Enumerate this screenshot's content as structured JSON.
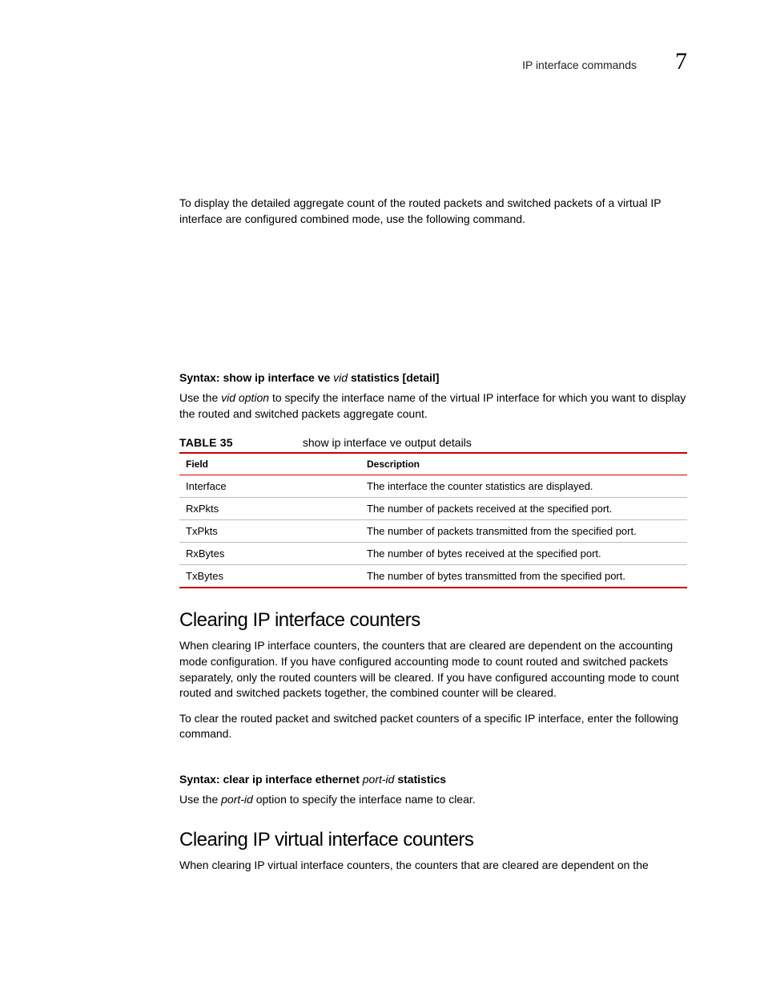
{
  "header": {
    "title": "IP interface commands",
    "chapter_number": "7"
  },
  "intro_para": "To display the detailed aggregate count of the routed packets and switched packets of a virtual IP interface are configured combined mode, use the following command.",
  "syntax1": {
    "prefix": "Syntax:  show ip interface ve ",
    "param": "vid",
    "suffix": " statistics [detail]"
  },
  "syntax1_desc": {
    "pre": "Use the ",
    "italic": "vid option",
    "post": " to specify the interface name of the virtual IP interface for which you want to display the routed and switched packets aggregate count."
  },
  "table": {
    "label": "TABLE 35",
    "caption": "show ip interface ve output details",
    "columns": [
      "Field",
      "Description"
    ],
    "rows": [
      [
        "Interface",
        "The interface the counter statistics are displayed."
      ],
      [
        "RxPkts",
        "The number of packets received at the specified port."
      ],
      [
        "TxPkts",
        "The number of packets transmitted from the specified port."
      ],
      [
        "RxBytes",
        "The number of bytes received at the specified port."
      ],
      [
        "TxBytes",
        "The number of bytes transmitted from the specified port."
      ]
    ]
  },
  "section1": {
    "title": "Clearing IP interface counters",
    "para1": "When clearing IP interface counters, the counters that are cleared are dependent on the accounting mode configuration. If you have configured accounting mode to count routed and switched packets separately, only the routed counters will be cleared. If you have configured accounting mode to count routed and switched packets together, the combined counter will be cleared.",
    "para2": "To clear the routed packet and switched packet counters of a specific IP interface, enter the following command."
  },
  "syntax2": {
    "prefix": "Syntax:  clear ip interface ethernet ",
    "param": "port-id",
    "suffix": " statistics"
  },
  "syntax2_desc": {
    "pre": "Use the ",
    "italic": "port-id",
    "post": " option to specify the interface name to clear."
  },
  "section2": {
    "title": "Clearing IP virtual interface counters",
    "para1": "When clearing IP virtual interface counters, the counters that are cleared are dependent on the"
  }
}
